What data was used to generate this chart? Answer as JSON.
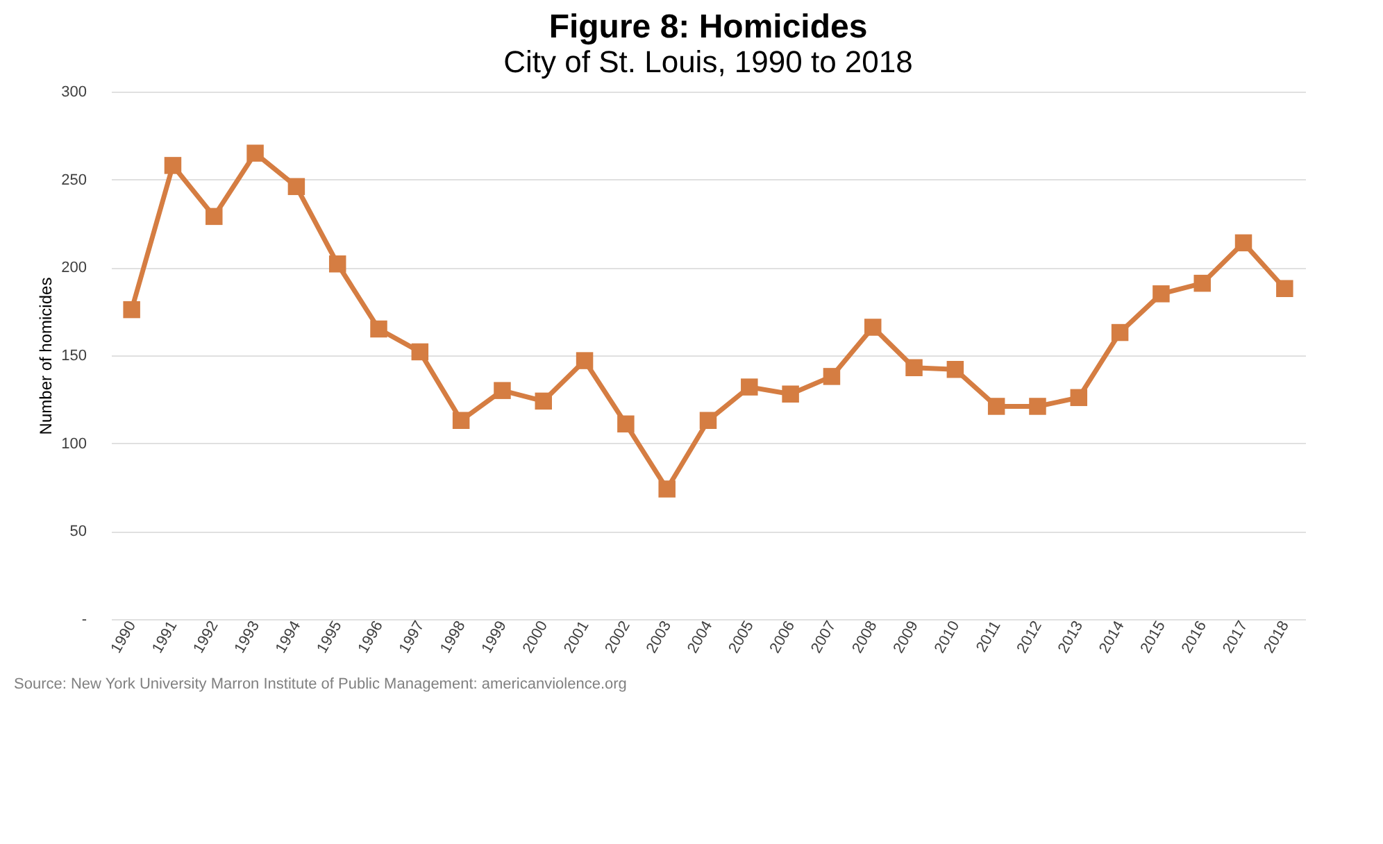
{
  "chart_data": {
    "type": "line",
    "title": "Figure 8: Homicides",
    "subtitle": "City of St. Louis, 1990 to 2018",
    "ylabel": "Number of homicides",
    "categories": [
      "1990",
      "1991",
      "1992",
      "1993",
      "1994",
      "1995",
      "1996",
      "1997",
      "1998",
      "1999",
      "2000",
      "2001",
      "2002",
      "2003",
      "2004",
      "2005",
      "2006",
      "2007",
      "2008",
      "2009",
      "2010",
      "2011",
      "2012",
      "2013",
      "2014",
      "2015",
      "2016",
      "2017",
      "2018"
    ],
    "series": [
      {
        "color": "#d57d42",
        "values": [
          176,
          258,
          229,
          265,
          246,
          202,
          165,
          152,
          113,
          130,
          124,
          147,
          111,
          74,
          113,
          132,
          128,
          138,
          166,
          143,
          142,
          121,
          121,
          126,
          163,
          185,
          191,
          214,
          188
        ]
      }
    ],
    "ylim": [
      0,
      300
    ],
    "yticks": [
      {
        "value": 0,
        "label": "-"
      },
      50,
      100,
      150,
      200,
      250,
      300
    ],
    "grid": "y",
    "marker": "square",
    "line_style": "solid",
    "annotations": [
      "Source: New York University Marron Institute of Public Management: americanviolence.org"
    ]
  }
}
